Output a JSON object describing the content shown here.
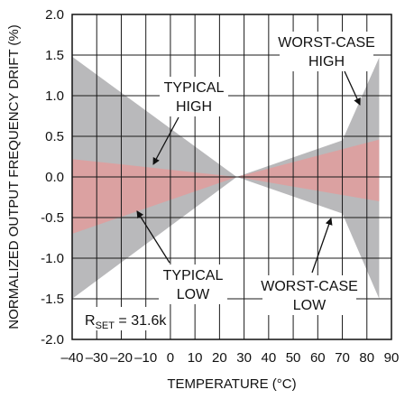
{
  "chart_data": {
    "type": "area",
    "xlabel": "TEMPERATURE (°C)",
    "ylabel": "NORMALIZED OUTPUT FREQUENCY DRIFT (%)",
    "xlim": [
      -40,
      90
    ],
    "ylim": [
      -2.0,
      2.0
    ],
    "x_ticks": [
      -40,
      -30,
      -20,
      -10,
      0,
      10,
      20,
      30,
      40,
      50,
      60,
      70,
      80,
      90
    ],
    "y_ticks": [
      "2.0",
      "1.5",
      "1.0",
      "0.5",
      "0.0",
      "-0.5",
      "-1.0",
      "-1.5",
      "-2.0"
    ],
    "grid": true,
    "colors": {
      "worst_case_band": "#b9b9bb",
      "typical_band": "#dba1a1",
      "grid": "#1a1a1a"
    },
    "series": [
      {
        "name": "WORST-CASE HIGH",
        "x": [
          -40,
          27,
          70,
          85
        ],
        "y": [
          1.48,
          0.0,
          0.45,
          1.47
        ]
      },
      {
        "name": "WORST-CASE LOW",
        "x": [
          -40,
          27,
          70,
          85
        ],
        "y": [
          -1.5,
          0.0,
          -0.45,
          -1.5
        ]
      },
      {
        "name": "TYPICAL HIGH",
        "x": [
          -40,
          27,
          85
        ],
        "y": [
          0.22,
          0.0,
          0.46
        ]
      },
      {
        "name": "TYPICAL LOW",
        "x": [
          -40,
          27,
          85
        ],
        "y": [
          -0.7,
          0.0,
          -0.3
        ]
      }
    ],
    "annotations": {
      "typical_high": [
        "TYPICAL",
        "HIGH"
      ],
      "typical_low": [
        "TYPICAL",
        "LOW"
      ],
      "worst_high": [
        "WORST-CASE",
        "HIGH"
      ],
      "worst_low": [
        "WORST-CASE",
        "LOW"
      ],
      "rset_main": "R",
      "rset_sub": "SET",
      "rset_value": " = 31.6k"
    }
  }
}
